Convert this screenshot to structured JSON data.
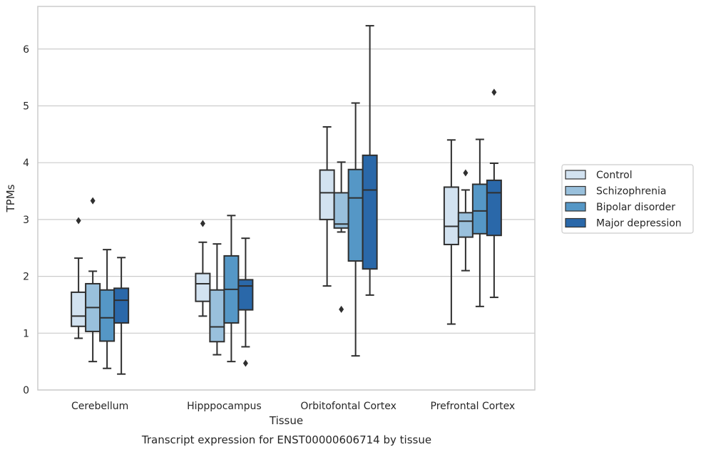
{
  "chart_data": {
    "type": "boxplot",
    "caption": "Transcript expression for ENST00000606714 by tissue",
    "xlabel": "Tissue",
    "ylabel": "TPMs",
    "ylim": [
      0,
      6.75
    ],
    "yticks": [
      0,
      1,
      2,
      3,
      4,
      5,
      6
    ],
    "grid": true,
    "legend_position": "right",
    "categories": [
      "Cerebellum",
      "Hipppocampus",
      "Orbitofontal Cortex",
      "Prefrontal Cortex"
    ],
    "series": [
      {
        "name": "Control",
        "color": "#d2e2f0",
        "boxes": [
          {
            "whislo": 0.91,
            "q1": 1.12,
            "med": 1.3,
            "q3": 1.72,
            "whishi": 2.32,
            "fliers": [
              2.98
            ]
          },
          {
            "whislo": 1.3,
            "q1": 1.56,
            "med": 1.87,
            "q3": 2.05,
            "whishi": 2.6,
            "fliers": [
              2.93
            ]
          },
          {
            "whislo": 1.83,
            "q1": 3.0,
            "med": 3.47,
            "q3": 3.87,
            "whishi": 4.63,
            "fliers": []
          },
          {
            "whislo": 1.16,
            "q1": 2.56,
            "med": 2.88,
            "q3": 3.57,
            "whishi": 4.4,
            "fliers": []
          }
        ]
      },
      {
        "name": "Schizophrenia",
        "color": "#99c0dc",
        "boxes": [
          {
            "whislo": 0.5,
            "q1": 1.03,
            "med": 1.45,
            "q3": 1.87,
            "whishi": 2.09,
            "fliers": [
              3.33
            ]
          },
          {
            "whislo": 0.62,
            "q1": 0.85,
            "med": 1.11,
            "q3": 1.76,
            "whishi": 2.57,
            "fliers": []
          },
          {
            "whislo": 2.78,
            "q1": 2.85,
            "med": 2.92,
            "q3": 3.47,
            "whishi": 4.01,
            "fliers": [
              1.42
            ]
          },
          {
            "whislo": 2.1,
            "q1": 2.69,
            "med": 2.97,
            "q3": 3.12,
            "whishi": 3.52,
            "fliers": [
              3.82
            ]
          }
        ]
      },
      {
        "name": "Bipolar disorder",
        "color": "#5597c6",
        "boxes": [
          {
            "whislo": 0.38,
            "q1": 0.86,
            "med": 1.27,
            "q3": 1.76,
            "whishi": 2.47,
            "fliers": []
          },
          {
            "whislo": 0.5,
            "q1": 1.18,
            "med": 1.77,
            "q3": 2.36,
            "whishi": 3.07,
            "fliers": []
          },
          {
            "whislo": 0.6,
            "q1": 2.27,
            "med": 3.38,
            "q3": 3.88,
            "whishi": 5.05,
            "fliers": []
          },
          {
            "whislo": 1.47,
            "q1": 2.75,
            "med": 3.15,
            "q3": 3.62,
            "whishi": 4.41,
            "fliers": []
          }
        ]
      },
      {
        "name": "Major depression",
        "color": "#2a68a9",
        "boxes": [
          {
            "whislo": 0.28,
            "q1": 1.18,
            "med": 1.58,
            "q3": 1.79,
            "whishi": 2.33,
            "fliers": []
          },
          {
            "whislo": 0.76,
            "q1": 1.41,
            "med": 1.83,
            "q3": 1.94,
            "whishi": 2.67,
            "fliers": [
              0.47
            ]
          },
          {
            "whislo": 1.67,
            "q1": 2.13,
            "med": 3.52,
            "q3": 4.13,
            "whishi": 6.41,
            "fliers": []
          },
          {
            "whislo": 1.63,
            "q1": 2.72,
            "med": 3.47,
            "q3": 3.69,
            "whishi": 3.99,
            "fliers": [
              5.24
            ]
          }
        ]
      }
    ]
  }
}
